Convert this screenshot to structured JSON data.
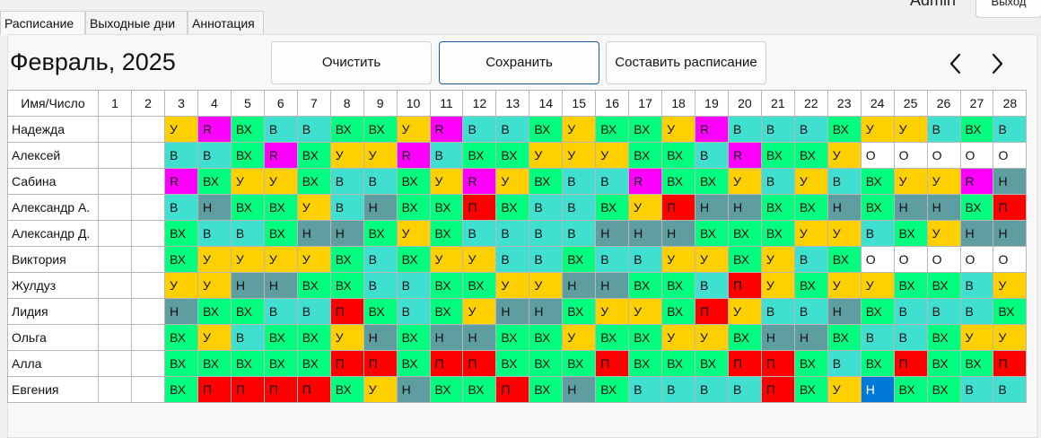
{
  "tabs": [
    "Расписание",
    "Выходные дни",
    "Аннотация"
  ],
  "user": "Admin",
  "exit_label": "Выход",
  "title": "Февраль, 2025",
  "buttons": {
    "clear": "Очистить",
    "save": "Сохранить",
    "generate": "Составить расписание"
  },
  "nav": {
    "prev": "chevron-left-icon",
    "next": "chevron-right-icon"
  },
  "colors": {
    "У": "#fed000",
    "R": "#ff00ff",
    "ВХ": "#00ff7f",
    "В": "#40e0d0",
    "Н": "#5f9ea0",
    "П": "#ff0000",
    "О": "#ffffff",
    "H": "#0078d7",
    "": "#ffffff"
  },
  "table": {
    "corner": "Имя/Число",
    "days": [
      "1",
      "2",
      "3",
      "4",
      "5",
      "6",
      "7",
      "8",
      "9",
      "10",
      "11",
      "12",
      "13",
      "14",
      "15",
      "16",
      "17",
      "18",
      "19",
      "20",
      "21",
      "22",
      "23",
      "24",
      "25",
      "26",
      "27",
      "28"
    ],
    "rows": [
      {
        "name": "Надежда",
        "cells": [
          "",
          "",
          "У",
          "R",
          "ВХ",
          "В",
          "В",
          "ВХ",
          "ВХ",
          "У",
          "R",
          "В",
          "В",
          "ВХ",
          "У",
          "ВХ",
          "ВХ",
          "У",
          "R",
          "В",
          "В",
          "В",
          "ВХ",
          "У",
          "У",
          "В",
          "ВХ",
          "В"
        ]
      },
      {
        "name": "Алексей",
        "cells": [
          "",
          "",
          "В",
          "В",
          "ВХ",
          "R",
          "ВХ",
          "У",
          "У",
          "R",
          "В",
          "ВХ",
          "ВХ",
          "У",
          "У",
          "У",
          "ВХ",
          "ВХ",
          "В",
          "R",
          "ВХ",
          "ВХ",
          "У",
          "О",
          "О",
          "О",
          "О",
          "О"
        ]
      },
      {
        "name": "Сабина",
        "cells": [
          "",
          "",
          "R",
          "ВХ",
          "У",
          "У",
          "ВХ",
          "В",
          "В",
          "ВХ",
          "У",
          "R",
          "У",
          "ВХ",
          "В",
          "В",
          "R",
          "ВХ",
          "ВХ",
          "У",
          "В",
          "У",
          "В",
          "ВХ",
          "У",
          "У",
          "R",
          "Н"
        ]
      },
      {
        "name": "Александр А.",
        "cells": [
          "",
          "",
          "В",
          "Н",
          "ВХ",
          "ВХ",
          "У",
          "В",
          "Н",
          "ВХ",
          "ВХ",
          "П",
          "ВХ",
          "В",
          "В",
          "ВХ",
          "У",
          "П",
          "Н",
          "Н",
          "ВХ",
          "ВХ",
          "Н",
          "ВХ",
          "Н",
          "Н",
          "ВХ",
          "П"
        ]
      },
      {
        "name": "Александр Д.",
        "cells": [
          "",
          "",
          "ВХ",
          "В",
          "В",
          "ВХ",
          "Н",
          "Н",
          "ВХ",
          "У",
          "ВХ",
          "В",
          "В",
          "В",
          "В",
          "Н",
          "Н",
          "Н",
          "ВХ",
          "ВХ",
          "ВХ",
          "У",
          "У",
          "В",
          "ВХ",
          "У",
          "Н",
          "Н"
        ]
      },
      {
        "name": "Виктория",
        "cells": [
          "",
          "",
          "ВХ",
          "У",
          "У",
          "У",
          "У",
          "ВХ",
          "В",
          "ВХ",
          "У",
          "У",
          "В",
          "В",
          "ВХ",
          "В",
          "В",
          "У",
          "У",
          "ВХ",
          "У",
          "В",
          "ВХ",
          "О",
          "О",
          "О",
          "О",
          "О"
        ]
      },
      {
        "name": "Жулдуз",
        "cells": [
          "",
          "",
          "У",
          "У",
          "Н",
          "Н",
          "ВХ",
          "ВХ",
          "В",
          "В",
          "ВХ",
          "ВХ",
          "У",
          "У",
          "Н",
          "Н",
          "ВХ",
          "ВХ",
          "В",
          "П",
          "У",
          "ВХ",
          "У",
          "У",
          "ВХ",
          "ВХ",
          "В",
          "У"
        ]
      },
      {
        "name": "Лидия",
        "cells": [
          "",
          "",
          "Н",
          "ВХ",
          "ВХ",
          "В",
          "В",
          "П",
          "ВХ",
          "В",
          "ВХ",
          "У",
          "Н",
          "Н",
          "ВХ",
          "У",
          "У",
          "ВХ",
          "П",
          "У",
          "В",
          "В",
          "Н",
          "ВХ",
          "В",
          "В",
          "В",
          "ВХ"
        ]
      },
      {
        "name": "Ольга",
        "cells": [
          "",
          "",
          "ВХ",
          "У",
          "В",
          "ВХ",
          "ВХ",
          "У",
          "Н",
          "ВХ",
          "Н",
          "Н",
          "ВХ",
          "ВХ",
          "У",
          "ВХ",
          "ВХ",
          "У",
          "У",
          "ВХ",
          "Н",
          "Н",
          "ВХ",
          "В",
          "В",
          "ВХ",
          "У",
          "У"
        ]
      },
      {
        "name": "Алла",
        "cells": [
          "",
          "",
          "ВХ",
          "ВХ",
          "ВХ",
          "ВХ",
          "ВХ",
          "П",
          "П",
          "ВХ",
          "П",
          "П",
          "ВХ",
          "ВХ",
          "ВХ",
          "П",
          "ВХ",
          "ВХ",
          "ВХ",
          "П",
          "П",
          "ВХ",
          "В",
          "ВХ",
          "П",
          "ВХ",
          "ВХ",
          "П"
        ]
      },
      {
        "name": "Евгения",
        "cells": [
          "",
          "",
          "ВХ",
          "П",
          "П",
          "П",
          "П",
          "ВХ",
          "У",
          "Н",
          "ВХ",
          "ВХ",
          "П",
          "ВХ",
          "Н",
          "ВХ",
          "В",
          "В",
          "В",
          "В",
          "П",
          "ВХ",
          "У",
          "H",
          "ВХ",
          "ВХ",
          "В",
          "В"
        ]
      }
    ]
  }
}
